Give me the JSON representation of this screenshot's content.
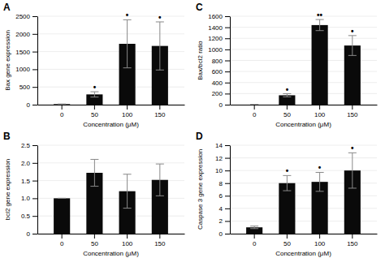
{
  "chart_data": [
    {
      "type": "bar",
      "title": "A",
      "xlabel": "Concentration (μM)",
      "ylabel": "Bax gene expression",
      "categories": [
        "0",
        "50",
        "100",
        "150"
      ],
      "values": [
        15,
        290,
        1720,
        1660
      ],
      "errors": [
        5,
        75,
        680,
        680
      ],
      "annotations": [
        null,
        "•",
        "•",
        "•"
      ],
      "color": "#0a0a0a",
      "ylim": [
        0,
        2500
      ],
      "yticks": [
        0,
        500,
        1000,
        1500,
        2000,
        2500
      ],
      "grid": true
    },
    {
      "type": "bar",
      "title": "B",
      "xlabel": "Concentration (μM)",
      "ylabel": "bcl2 gene expression",
      "categories": [
        "0",
        "50",
        "100",
        "150"
      ],
      "values": [
        1.0,
        1.72,
        1.2,
        1.52
      ],
      "errors": [
        0.0,
        0.38,
        0.48,
        0.45
      ],
      "color": "#0a0a0a",
      "ylim": [
        0,
        2.5
      ],
      "yticks": [
        0,
        0.5,
        {
          "value": 1.0,
          "label": "1.0"
        },
        1.5,
        {
          "value": 2.0,
          "label": "2.0"
        },
        2.5
      ],
      "grid": true
    },
    {
      "type": "bar",
      "title": "C",
      "xlabel": "Concentration (μM)",
      "ylabel": "Bax/bcl2 ratio",
      "categories": [
        "0",
        "50",
        "100",
        "150"
      ],
      "values": [
        0,
        170,
        1440,
        1070
      ],
      "errors": [
        0,
        28,
        100,
        180
      ],
      "annotations": [
        null,
        "•",
        "••",
        "•"
      ],
      "color": "#0a0a0a",
      "ylim": [
        0,
        1600
      ],
      "yticks": [
        0,
        200,
        400,
        600,
        800,
        1000,
        1200,
        1400,
        1600
      ],
      "grid": true
    },
    {
      "type": "bar",
      "title": "D",
      "xlabel": "Concentration (μM)",
      "ylabel": "Caspase 3 gene expression",
      "categories": [
        "0",
        "50",
        "100",
        "150"
      ],
      "values": [
        1.0,
        8.0,
        8.2,
        10.0
      ],
      "errors": [
        0.2,
        1.2,
        1.5,
        2.8
      ],
      "annotations": [
        null,
        "•",
        "•",
        "•"
      ],
      "color": "#0a0a0a",
      "ylim": [
        0,
        14
      ],
      "yticks": [
        0,
        2,
        4,
        6,
        8,
        10,
        12,
        14
      ],
      "grid": true
    }
  ]
}
